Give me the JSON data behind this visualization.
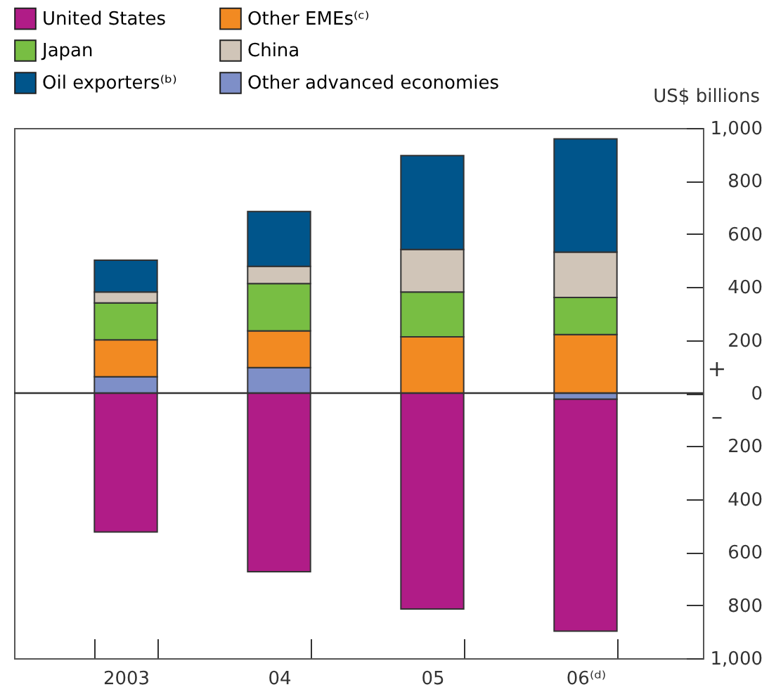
{
  "chart_data": {
    "type": "bar",
    "stacked": true,
    "ylabel": "US$ billions",
    "categories": [
      "2003",
      "04",
      "05",
      "06⁽ᵈ⁾"
    ],
    "series": [
      {
        "name": "Other advanced economies",
        "color": "#7e8fc8",
        "values": [
          62,
          96,
          0,
          -23
        ]
      },
      {
        "name": "Other EMEs⁽ᶜ⁾",
        "color": "#f28a22",
        "values": [
          139,
          139,
          212,
          221
        ]
      },
      {
        "name": "Japan",
        "color": "#78be43",
        "values": [
          139,
          178,
          169,
          140
        ]
      },
      {
        "name": "China",
        "color": "#d0c5b8",
        "values": [
          41,
          65,
          161,
          171
        ]
      },
      {
        "name": "Oil exporters⁽ᵇ⁾",
        "color": "#00558b",
        "values": [
          120,
          207,
          354,
          427
        ]
      },
      {
        "name": "United States",
        "color": "#b01c87",
        "values": [
          -524,
          -674,
          -814,
          -875
        ]
      }
    ],
    "ylim": [
      -1000,
      1000
    ],
    "yticks": [
      {
        "value": -1000,
        "label": "1,000"
      },
      {
        "value": -800,
        "label": "800"
      },
      {
        "value": -600,
        "label": "600"
      },
      {
        "value": -400,
        "label": "400"
      },
      {
        "value": -200,
        "label": "200"
      },
      0,
      200,
      400,
      600,
      800,
      {
        "value": 1000,
        "label": "1,000"
      }
    ],
    "ref_lines": [
      {
        "axis": "y",
        "value": 0
      }
    ],
    "annotations": [
      "+",
      "–"
    ],
    "legend": "top left",
    "grid": false
  }
}
